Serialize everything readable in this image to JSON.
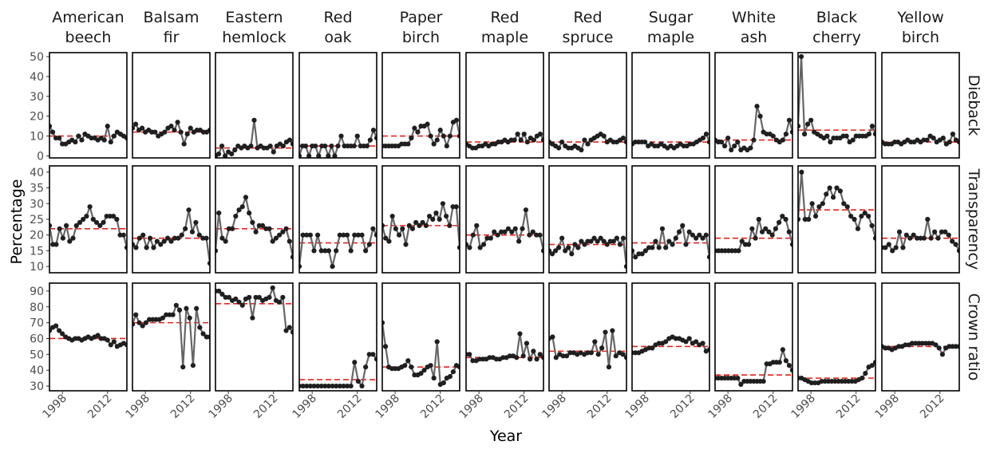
{
  "chart_data": {
    "type": "line",
    "xlabel": "Year",
    "ylabel": "Percentage",
    "x_ticks": [
      1998,
      2012
    ],
    "x_range": [
      1994,
      2018
    ],
    "species": [
      [
        "American",
        "beech"
      ],
      [
        "Balsam",
        "fir"
      ],
      [
        "Eastern",
        "hemlock"
      ],
      [
        "Red",
        "oak"
      ],
      [
        "Paper",
        "birch"
      ],
      [
        "Red",
        "maple"
      ],
      [
        "Red",
        "spruce"
      ],
      [
        "Sugar",
        "maple"
      ],
      [
        "White",
        "ash"
      ],
      [
        "Black",
        "cherry"
      ],
      [
        "Yellow",
        "birch"
      ]
    ],
    "metrics": [
      {
        "name": "Dieback",
        "ylim": [
          -1,
          52
        ],
        "yticks": [
          0,
          10,
          20,
          30,
          40,
          50
        ]
      },
      {
        "name": "Transparency",
        "ylim": [
          8,
          42
        ],
        "yticks": [
          10,
          15,
          20,
          25,
          30,
          35,
          40
        ]
      },
      {
        "name": "Crown ratio",
        "ylim": [
          27,
          95
        ],
        "yticks": [
          30,
          40,
          50,
          60,
          70,
          80,
          90
        ]
      }
    ],
    "years": [
      1994,
      1995,
      1996,
      1997,
      1998,
      1999,
      2000,
      2001,
      2002,
      2003,
      2004,
      2005,
      2006,
      2007,
      2008,
      2009,
      2010,
      2011,
      2012,
      2013,
      2014,
      2015,
      2016,
      2017,
      2018
    ],
    "series": {
      "Dieback": [
        [
          15,
          12,
          9,
          9,
          6,
          6,
          7,
          8,
          7,
          10,
          8,
          11,
          10,
          9,
          9,
          8,
          9,
          8,
          15,
          7,
          10,
          12,
          11,
          10,
          9
        ],
        [
          14,
          16,
          13,
          14,
          12,
          13,
          12,
          12,
          10,
          11,
          12,
          14,
          15,
          13,
          17,
          12,
          6,
          11,
          14,
          12,
          13,
          13,
          12,
          12,
          13
        ],
        [
          0,
          1,
          5,
          0,
          2,
          1,
          3,
          5,
          4,
          5,
          4,
          5,
          18,
          4,
          5,
          4,
          4,
          5,
          2,
          5,
          6,
          5,
          7,
          8,
          6
        ],
        [
          0,
          5,
          5,
          0,
          5,
          5,
          0,
          5,
          5,
          0,
          5,
          0,
          5,
          10,
          5,
          5,
          5,
          5,
          10,
          5,
          5,
          5,
          8,
          13,
          9
        ],
        [
          5,
          5,
          5,
          5,
          5,
          5,
          6,
          6,
          6,
          9,
          14,
          12,
          15,
          15,
          16,
          10,
          6,
          8,
          13,
          10,
          5,
          10,
          17,
          18,
          10
        ],
        [
          6,
          5,
          4,
          4,
          5,
          5,
          6,
          5,
          6,
          6,
          7,
          7,
          8,
          7,
          8,
          8,
          11,
          8,
          11,
          7,
          9,
          8,
          10,
          11,
          8
        ],
        [
          7,
          6,
          5,
          4,
          7,
          5,
          4,
          4,
          5,
          4,
          3,
          8,
          6,
          8,
          9,
          10,
          11,
          10,
          7,
          8,
          7,
          7,
          8,
          9,
          7
        ],
        [
          6,
          7,
          7,
          7,
          7,
          5,
          6,
          5,
          5,
          6,
          5,
          4,
          5,
          4,
          5,
          6,
          5,
          5,
          6,
          6,
          7,
          8,
          9,
          11,
          7
        ],
        [
          8,
          7,
          7,
          5,
          9,
          3,
          5,
          7,
          3,
          4,
          3,
          4,
          8,
          25,
          20,
          12,
          11,
          11,
          10,
          8,
          7,
          8,
          11,
          18,
          12
        ],
        [
          15,
          50,
          11,
          16,
          18,
          12,
          11,
          10,
          9,
          10,
          7,
          9,
          9,
          9,
          10,
          10,
          7,
          8,
          10,
          10,
          10,
          10,
          11,
          15,
          11
        ],
        [
          7,
          6,
          6,
          6,
          7,
          7,
          6,
          7,
          8,
          7,
          7,
          8,
          7,
          8,
          8,
          10,
          9,
          7,
          8,
          9,
          6,
          7,
          11,
          8,
          7
        ]
      ],
      "Transparency": [
        [
          23,
          17,
          17,
          22,
          19,
          23,
          18,
          19,
          23,
          24,
          25,
          26,
          29,
          25,
          24,
          23,
          24,
          26,
          26,
          26,
          25,
          20,
          20,
          16
        ],
        [
          17,
          16,
          19,
          20,
          16,
          19,
          16,
          18,
          17,
          18,
          19,
          18,
          19,
          19,
          20,
          22,
          28,
          21,
          24,
          20,
          19,
          19,
          11
        ],
        [
          15,
          27,
          19,
          18,
          22,
          22,
          26,
          28,
          29,
          32,
          27,
          24,
          21,
          23,
          23,
          22,
          22,
          18,
          19,
          20,
          21,
          22,
          18,
          13
        ],
        [
          10,
          20,
          20,
          20,
          15,
          20,
          15,
          15,
          15,
          10,
          15,
          20,
          20,
          20,
          15,
          20,
          20,
          20,
          15,
          17,
          22,
          20
        ],
        [
          23,
          19,
          18,
          26,
          22,
          20,
          22,
          17,
          23,
          22,
          24,
          23,
          24,
          23,
          26,
          25,
          27,
          25,
          30,
          26,
          23,
          29,
          29,
          16
        ],
        [
          17,
          16,
          20,
          23,
          16,
          17,
          19,
          19,
          21,
          20,
          21,
          21,
          22,
          21,
          22,
          18,
          22,
          28,
          20,
          21,
          20,
          20,
          15
        ],
        [
          15,
          14,
          15,
          16,
          19,
          15,
          16,
          14,
          17,
          16,
          18,
          17,
          18,
          18,
          19,
          18,
          19,
          18,
          17,
          18,
          18,
          19,
          17,
          19,
          10
        ],
        [
          15,
          13,
          14,
          14,
          15,
          16,
          16,
          18,
          16,
          22,
          16,
          18,
          17,
          19,
          21,
          23,
          17,
          21,
          20,
          19,
          20,
          19,
          20,
          13
        ],
        [
          15,
          15,
          15,
          15,
          15,
          15,
          15,
          15,
          18,
          17,
          17,
          22,
          19,
          25,
          21,
          22,
          21,
          20,
          22,
          24,
          26,
          25,
          21,
          17
        ],
        [
          25,
          40,
          25,
          25,
          30,
          26,
          29,
          30,
          33,
          35,
          32,
          35,
          34,
          30,
          29,
          26,
          25,
          22,
          26,
          27,
          26,
          23,
          19
        ],
        [
          16,
          16,
          17,
          15,
          16,
          21,
          16,
          20,
          19,
          20,
          19,
          19,
          19,
          25,
          19,
          21,
          19,
          21,
          21,
          20,
          18,
          17,
          15
        ]
      ],
      "Crown ratio": [
        [
          65,
          67,
          68,
          65,
          63,
          61,
          60,
          59,
          60,
          60,
          59,
          60,
          61,
          60,
          61,
          62,
          60,
          60,
          59,
          56,
          58,
          55,
          56,
          57,
          56
        ],
        [
          69,
          75,
          70,
          68,
          70,
          72,
          72,
          72,
          72,
          73,
          75,
          75,
          75,
          81,
          78,
          42,
          79,
          73,
          43,
          79,
          67,
          63,
          61,
          61
        ],
        [
          90,
          90,
          88,
          86,
          86,
          84,
          85,
          83,
          81,
          85,
          86,
          73,
          86,
          86,
          84,
          85,
          86,
          92,
          84,
          83,
          86,
          65,
          67,
          64
        ],
        [
          30,
          30,
          30,
          30,
          30,
          30,
          30,
          30,
          30,
          30,
          30,
          30,
          30,
          30,
          30,
          45,
          33,
          30,
          42,
          50,
          50,
          47
        ],
        [
          70,
          55,
          42,
          41,
          41,
          41,
          42,
          43,
          46,
          42,
          37,
          37,
          38,
          40,
          42,
          43,
          35,
          58,
          31,
          32,
          35,
          36,
          39,
          43,
          42
        ],
        [
          50,
          50,
          46,
          46,
          47,
          47,
          47,
          48,
          48,
          47,
          47,
          48,
          48,
          49,
          49,
          48,
          63,
          49,
          57,
          47,
          52,
          47,
          50,
          48
        ],
        [
          60,
          61,
          48,
          50,
          49,
          49,
          51,
          51,
          50,
          51,
          50,
          51,
          51,
          58,
          50,
          54,
          64,
          42,
          65,
          49,
          51,
          50,
          48
        ],
        [
          51,
          51,
          51,
          52,
          53,
          54,
          54,
          56,
          57,
          57,
          58,
          60,
          61,
          60,
          60,
          59,
          58,
          60,
          57,
          58,
          56,
          57,
          52,
          53
        ],
        [
          35,
          35,
          35,
          35,
          35,
          35,
          35,
          35,
          31,
          33,
          33,
          33,
          33,
          33,
          33,
          33,
          44,
          44,
          45,
          45,
          45,
          53,
          46,
          43,
          40
        ],
        [
          35,
          35,
          34,
          33,
          32,
          32,
          32,
          33,
          33,
          33,
          33,
          33,
          33,
          33,
          33,
          33,
          33,
          33,
          34,
          35,
          38,
          42,
          43,
          45
        ],
        [
          55,
          54,
          54,
          53,
          54,
          55,
          55,
          56,
          56,
          57,
          57,
          57,
          57,
          57,
          57,
          57,
          56,
          54,
          50,
          54,
          55,
          55,
          55,
          55
        ]
      ]
    },
    "reference_lines": {
      "Dieback": [
        10,
        12,
        4,
        5,
        10,
        7,
        7,
        7,
        8,
        13,
        7
      ],
      "Transparency": [
        22,
        19,
        22,
        17.5,
        23,
        20,
        17,
        17.5,
        19,
        28,
        19
      ],
      "Crown ratio": [
        60,
        70,
        82,
        34,
        42,
        48,
        52,
        55,
        37,
        35,
        55
      ]
    },
    "colors": {
      "line": "#666666",
      "points": "#1f1f1f",
      "reference": "#e8231b"
    }
  }
}
